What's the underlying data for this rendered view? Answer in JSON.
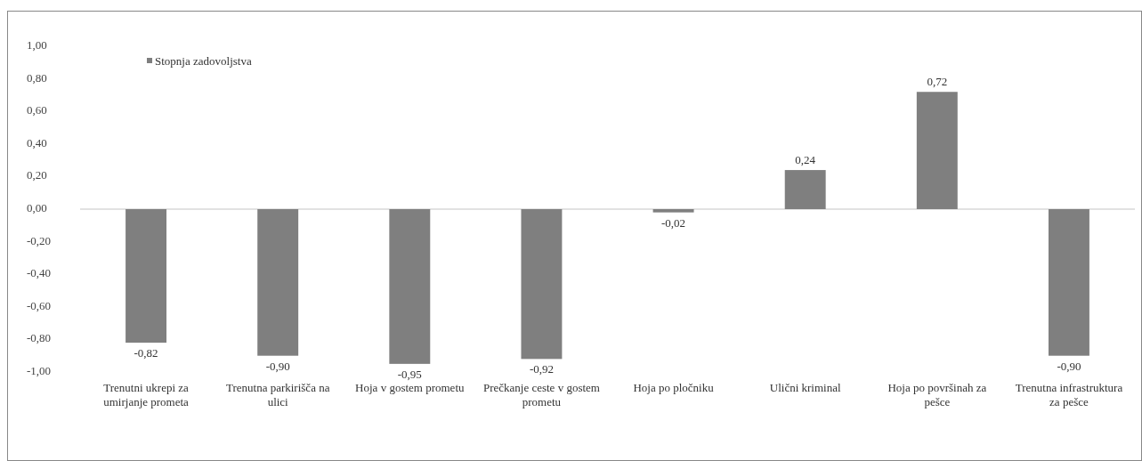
{
  "chart_data": {
    "type": "bar",
    "categories": [
      "Trenutni ukrepi za umirjanje prometa",
      "Trenutna parkirišča na ulici",
      "Hoja v gostem prometu",
      "Prečkanje ceste v gostem prometu",
      "Hoja po pločniku",
      "Ulični kriminal",
      "Hoja po površinah za pešce",
      "Trenutna infrastruktura za pešce"
    ],
    "series": [
      {
        "name": "Stopnja zadovoljstva",
        "color": "#7f7f7f",
        "values": [
          -0.82,
          -0.9,
          -0.95,
          -0.92,
          -0.02,
          0.24,
          0.72,
          -0.9
        ],
        "value_labels": [
          "-0,82",
          "-0,90",
          "-0,95",
          "-0,92",
          "-0,02",
          "0,24",
          "0,72",
          "-0,90"
        ]
      }
    ],
    "ylim": [
      -1,
      1
    ],
    "yticks": [
      {
        "value": -1,
        "label": "-1,00"
      },
      {
        "value": -0.8,
        "label": "-0,80"
      },
      {
        "value": -0.6,
        "label": "-0,60"
      },
      {
        "value": -0.4,
        "label": "-0,40"
      },
      {
        "value": -0.2,
        "label": "-0,20"
      },
      {
        "value": 0,
        "label": "0,00"
      },
      {
        "value": 0.2,
        "label": "0,20"
      },
      {
        "value": 0.4,
        "label": "0,40"
      },
      {
        "value": 0.6,
        "label": "0,60"
      },
      {
        "value": 0.8,
        "label": "0,80"
      },
      {
        "value": 1,
        "label": "1,00"
      }
    ],
    "legend": "top left"
  }
}
